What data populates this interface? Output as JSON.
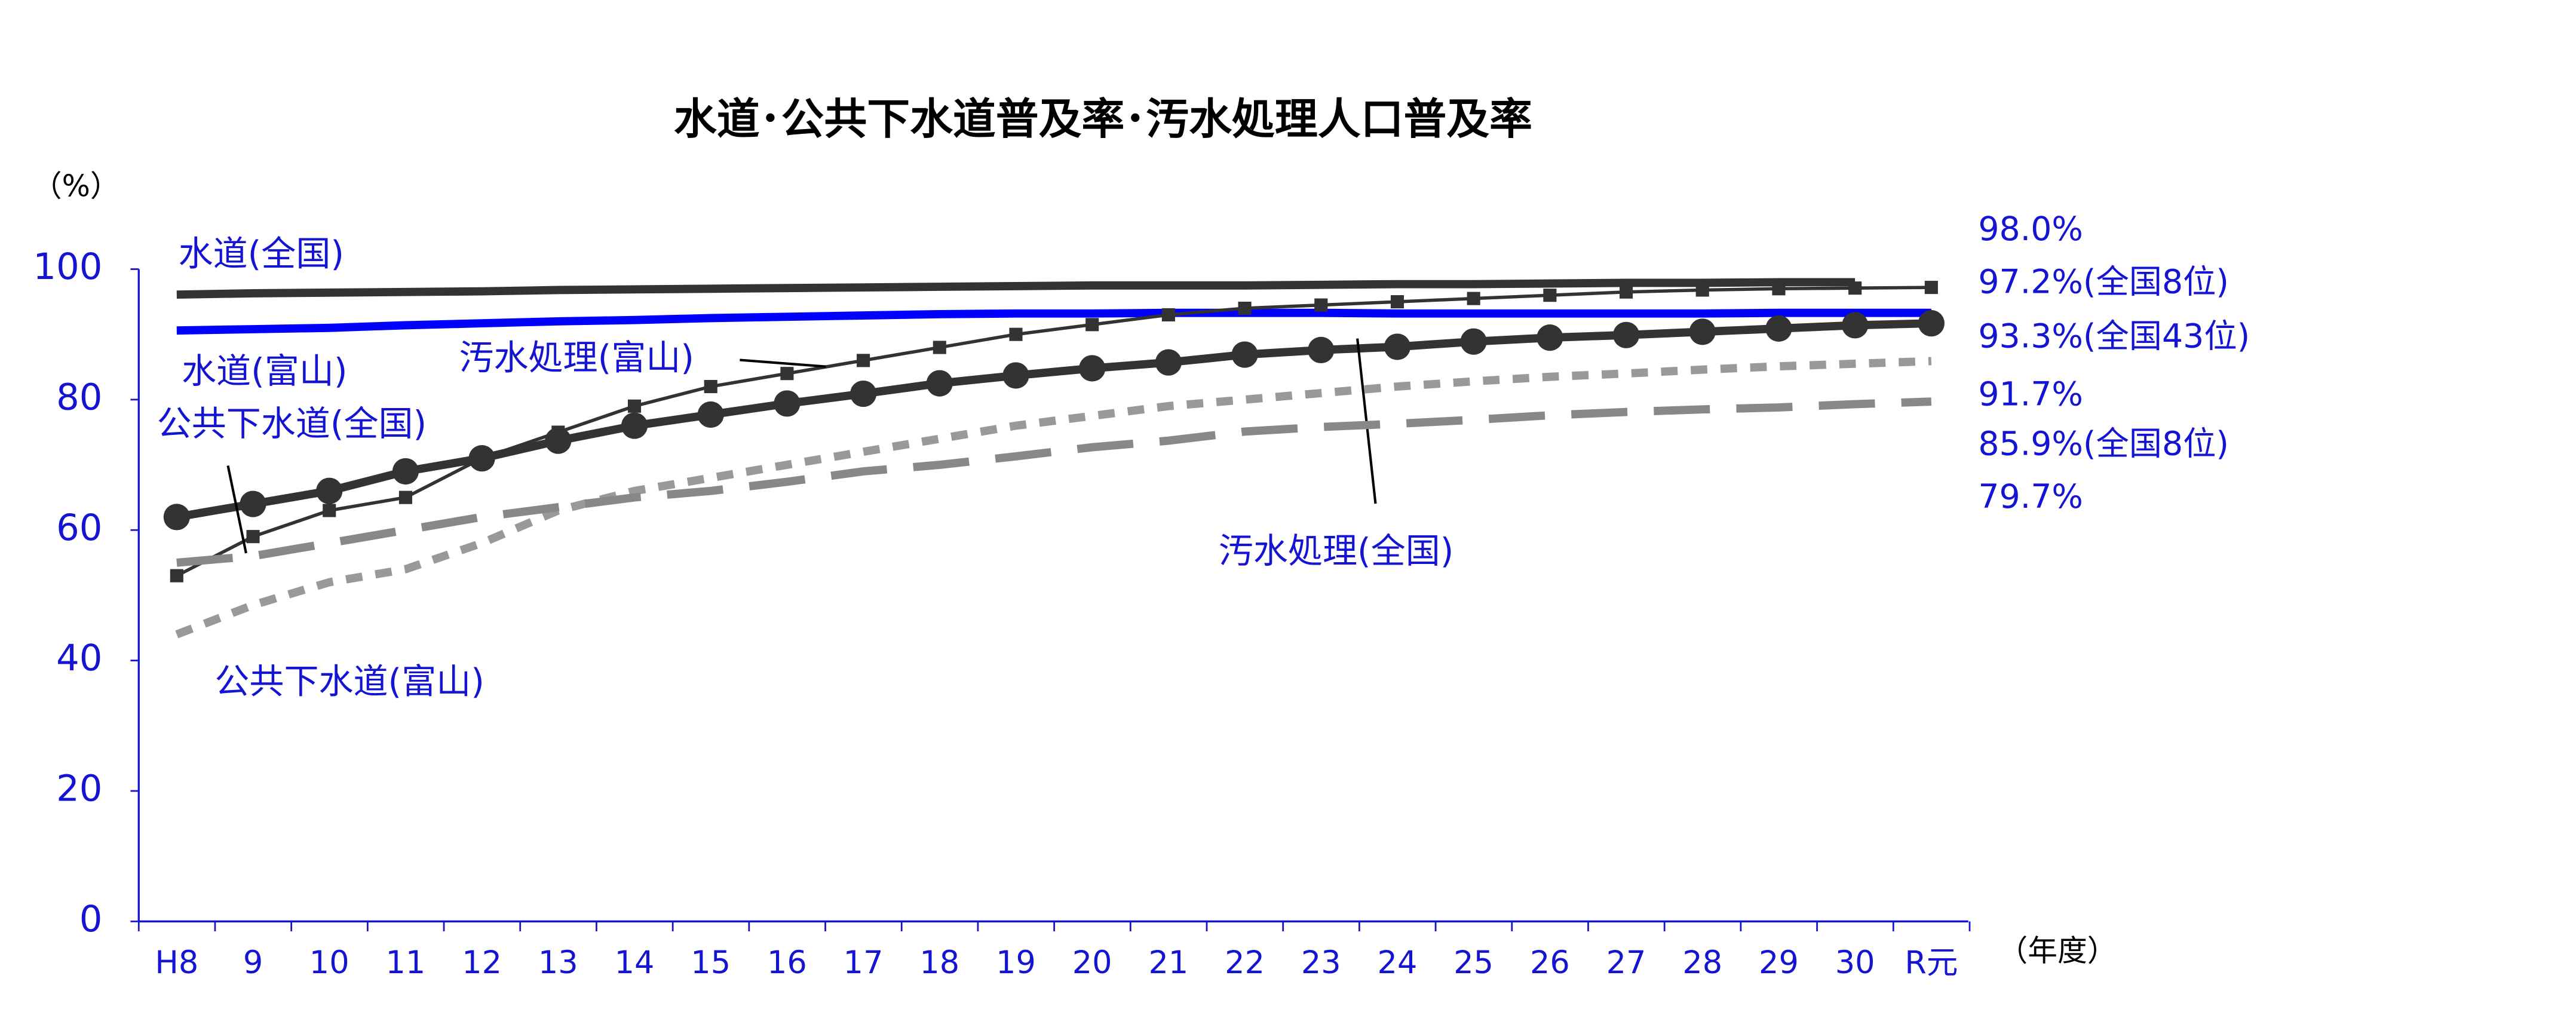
{
  "chart_data": {
    "type": "line",
    "title": "水道･公共下水道普及率･汚水処理人口普及率",
    "y_axis_label": "（%）",
    "x_axis_label": "（年度）",
    "categories": [
      "H8",
      "9",
      "10",
      "11",
      "12",
      "13",
      "14",
      "15",
      "16",
      "17",
      "18",
      "19",
      "20",
      "21",
      "22",
      "23",
      "24",
      "25",
      "26",
      "27",
      "28",
      "29",
      "30",
      "R元"
    ],
    "ylim": [
      0,
      100
    ],
    "yticks": [
      0,
      20,
      40,
      60,
      80,
      100
    ],
    "series": [
      {
        "name": "水道(全国)",
        "color": "#333333",
        "values": [
          96.1,
          96.3,
          96.4,
          96.5,
          96.6,
          96.8,
          96.9,
          97.0,
          97.1,
          97.2,
          97.3,
          97.4,
          97.5,
          97.5,
          97.5,
          97.6,
          97.7,
          97.7,
          97.8,
          97.9,
          97.9,
          98.0,
          98.0,
          null
        ],
        "value_labels": [
          null,
          null,
          null,
          null,
          null,
          null,
          null,
          null,
          null,
          null,
          null,
          null,
          null,
          null,
          null,
          null,
          null,
          null,
          null,
          null,
          null,
          null,
          "98.0%",
          null
        ]
      },
      {
        "name": "水道(富山)",
        "color": "#0000ff",
        "values": [
          90.6,
          90.8,
          91.0,
          91.4,
          91.7,
          92.0,
          92.2,
          92.5,
          92.7,
          92.9,
          93.1,
          93.2,
          93.2,
          93.3,
          93.3,
          93.3,
          93.2,
          93.2,
          93.2,
          93.2,
          93.2,
          93.3,
          93.3,
          93.3
        ],
        "value_labels": [
          null,
          null,
          null,
          null,
          null,
          null,
          null,
          null,
          null,
          null,
          null,
          null,
          null,
          null,
          null,
          null,
          null,
          null,
          null,
          null,
          null,
          null,
          null,
          "93.3%(全国43位)"
        ]
      },
      {
        "name": "汚水処理(富山)",
        "color": "#333333",
        "values": [
          53,
          59,
          63,
          65,
          71,
          75,
          79,
          82,
          84,
          86,
          88,
          90,
          91.5,
          93,
          94,
          94.5,
          95,
          95.5,
          96,
          96.5,
          96.8,
          97.0,
          97.1,
          97.2
        ],
        "value_labels": [
          null,
          null,
          null,
          null,
          null,
          null,
          null,
          null,
          null,
          null,
          null,
          null,
          null,
          null,
          null,
          null,
          null,
          null,
          null,
          null,
          null,
          null,
          null,
          "97.2%(全国8位)"
        ]
      },
      {
        "name": "汚水処理(全国)",
        "color": "#333333",
        "values": [
          62,
          64,
          66,
          69,
          71,
          73.7,
          76,
          77.7,
          79.4,
          80.9,
          82.5,
          83.7,
          84.8,
          85.7,
          86.9,
          87.6,
          88.1,
          88.9,
          89.5,
          89.9,
          90.4,
          90.9,
          91.4,
          91.7
        ],
        "value_labels": [
          null,
          null,
          null,
          null,
          null,
          null,
          null,
          null,
          null,
          null,
          null,
          null,
          null,
          null,
          null,
          null,
          null,
          null,
          null,
          null,
          null,
          null,
          null,
          "91.7%"
        ]
      },
      {
        "name": "公共下水道(富山)",
        "color": "#999999",
        "values": [
          44,
          48.5,
          52,
          54,
          58,
          63,
          66,
          68,
          70,
          72,
          74,
          76,
          77.5,
          79,
          80,
          81,
          82,
          82.8,
          83.5,
          84,
          84.6,
          85.1,
          85.5,
          85.9
        ],
        "value_labels": [
          null,
          null,
          null,
          null,
          null,
          null,
          null,
          null,
          null,
          null,
          null,
          null,
          null,
          null,
          null,
          null,
          null,
          null,
          null,
          null,
          null,
          null,
          null,
          "85.9%(全国8位)"
        ]
      },
      {
        "name": "公共下水道(全国)",
        "color": "#888888",
        "values": [
          55,
          56,
          58,
          60,
          62,
          63.5,
          65,
          66,
          67.4,
          69,
          70,
          71.3,
          72.7,
          73.7,
          75.1,
          75.8,
          76.3,
          76.9,
          77.6,
          78.1,
          78.5,
          78.8,
          79.3,
          79.7
        ],
        "value_labels": [
          null,
          null,
          null,
          null,
          null,
          null,
          null,
          null,
          null,
          null,
          null,
          null,
          null,
          null,
          null,
          null,
          null,
          null,
          null,
          null,
          null,
          null,
          null,
          "79.7%"
        ]
      }
    ]
  }
}
